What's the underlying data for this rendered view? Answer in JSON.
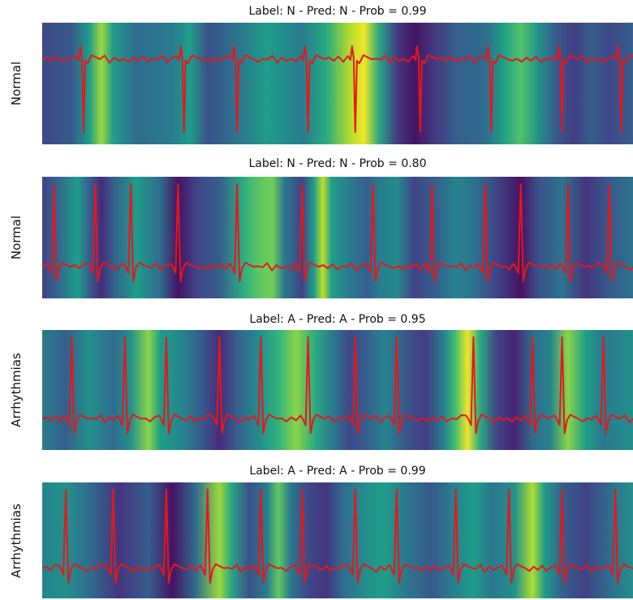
{
  "colors": {
    "trace": "#e8161a",
    "colormap": "viridis"
  },
  "chart_data": [
    {
      "type": "heatmap",
      "title": "Label: N - Pred: N - Prob = 0.99",
      "ylabel": "Normal",
      "beats": [
        0.07,
        0.24,
        0.33,
        0.45,
        0.53,
        0.64,
        0.76,
        0.88,
        0.98
      ],
      "beat_polarity": "down",
      "heat": [
        [
          0.0,
          0.22
        ],
        [
          0.05,
          0.28
        ],
        [
          0.08,
          0.55
        ],
        [
          0.1,
          0.85
        ],
        [
          0.12,
          0.55
        ],
        [
          0.16,
          0.35
        ],
        [
          0.22,
          0.42
        ],
        [
          0.25,
          0.55
        ],
        [
          0.28,
          0.25
        ],
        [
          0.32,
          0.35
        ],
        [
          0.38,
          0.55
        ],
        [
          0.44,
          0.42
        ],
        [
          0.48,
          0.6
        ],
        [
          0.52,
          0.88
        ],
        [
          0.545,
          0.98
        ],
        [
          0.57,
          0.6
        ],
        [
          0.6,
          0.18
        ],
        [
          0.63,
          0.05
        ],
        [
          0.66,
          0.15
        ],
        [
          0.7,
          0.3
        ],
        [
          0.75,
          0.35
        ],
        [
          0.78,
          0.55
        ],
        [
          0.81,
          0.72
        ],
        [
          0.84,
          0.5
        ],
        [
          0.87,
          0.28
        ],
        [
          0.9,
          0.18
        ],
        [
          0.93,
          0.3
        ],
        [
          0.96,
          0.22
        ],
        [
          1.0,
          0.3
        ]
      ]
    },
    {
      "type": "heatmap",
      "title": "Label: N - Pred: N - Prob = 0.80",
      "ylabel": "Normal",
      "beats": [
        0.02,
        0.09,
        0.15,
        0.23,
        0.33,
        0.44,
        0.56,
        0.66,
        0.75,
        0.81,
        0.89,
        0.96
      ],
      "beat_polarity": "up",
      "heat": [
        [
          0.0,
          0.2
        ],
        [
          0.03,
          0.35
        ],
        [
          0.06,
          0.55
        ],
        [
          0.08,
          0.3
        ],
        [
          0.1,
          0.12
        ],
        [
          0.12,
          0.3
        ],
        [
          0.16,
          0.55
        ],
        [
          0.2,
          0.35
        ],
        [
          0.23,
          0.05
        ],
        [
          0.26,
          0.2
        ],
        [
          0.3,
          0.3
        ],
        [
          0.34,
          0.62
        ],
        [
          0.37,
          0.75
        ],
        [
          0.39,
          0.78
        ],
        [
          0.41,
          0.4
        ],
        [
          0.44,
          0.2
        ],
        [
          0.46,
          0.55
        ],
        [
          0.475,
          0.9
        ],
        [
          0.49,
          0.55
        ],
        [
          0.52,
          0.42
        ],
        [
          0.55,
          0.3
        ],
        [
          0.57,
          0.42
        ],
        [
          0.6,
          0.48
        ],
        [
          0.63,
          0.2
        ],
        [
          0.67,
          0.32
        ],
        [
          0.7,
          0.45
        ],
        [
          0.73,
          0.38
        ],
        [
          0.77,
          0.2
        ],
        [
          0.81,
          0.05
        ],
        [
          0.84,
          0.25
        ],
        [
          0.88,
          0.38
        ],
        [
          0.92,
          0.15
        ],
        [
          0.96,
          0.28
        ],
        [
          1.0,
          0.38
        ]
      ]
    },
    {
      "type": "heatmap",
      "title": "Label: A - Pred: A - Prob = 0.95",
      "ylabel": "Arrhythmias",
      "beats": [
        0.05,
        0.14,
        0.21,
        0.3,
        0.37,
        0.45,
        0.53,
        0.6,
        0.73,
        0.83,
        0.88,
        0.95
      ],
      "beat_polarity": "up",
      "heat": [
        [
          0.0,
          0.42
        ],
        [
          0.04,
          0.3
        ],
        [
          0.08,
          0.5
        ],
        [
          0.12,
          0.35
        ],
        [
          0.15,
          0.5
        ],
        [
          0.18,
          0.82
        ],
        [
          0.2,
          0.55
        ],
        [
          0.24,
          0.45
        ],
        [
          0.27,
          0.28
        ],
        [
          0.3,
          0.12
        ],
        [
          0.33,
          0.3
        ],
        [
          0.37,
          0.5
        ],
        [
          0.4,
          0.65
        ],
        [
          0.43,
          0.82
        ],
        [
          0.46,
          0.62
        ],
        [
          0.49,
          0.42
        ],
        [
          0.52,
          0.22
        ],
        [
          0.55,
          0.3
        ],
        [
          0.58,
          0.45
        ],
        [
          0.62,
          0.25
        ],
        [
          0.65,
          0.18
        ],
        [
          0.68,
          0.45
        ],
        [
          0.7,
          0.7
        ],
        [
          0.72,
          0.98
        ],
        [
          0.74,
          0.62
        ],
        [
          0.77,
          0.2
        ],
        [
          0.8,
          0.1
        ],
        [
          0.83,
          0.35
        ],
        [
          0.86,
          0.45
        ],
        [
          0.89,
          0.82
        ],
        [
          0.92,
          0.55
        ],
        [
          0.95,
          0.4
        ],
        [
          1.0,
          0.5
        ]
      ]
    },
    {
      "type": "heatmap",
      "title": "Label: A - Pred: A - Prob = 0.99",
      "ylabel": "Arrhythmias",
      "beats": [
        0.04,
        0.12,
        0.21,
        0.28,
        0.37,
        0.44,
        0.53,
        0.6,
        0.7,
        0.79,
        0.88,
        0.97
      ],
      "beat_polarity": "up",
      "heat": [
        [
          0.0,
          0.45
        ],
        [
          0.04,
          0.5
        ],
        [
          0.08,
          0.35
        ],
        [
          0.13,
          0.15
        ],
        [
          0.18,
          0.3
        ],
        [
          0.22,
          0.05
        ],
        [
          0.26,
          0.35
        ],
        [
          0.3,
          0.85
        ],
        [
          0.32,
          0.6
        ],
        [
          0.35,
          0.25
        ],
        [
          0.38,
          0.42
        ],
        [
          0.4,
          0.75
        ],
        [
          0.42,
          0.4
        ],
        [
          0.45,
          0.22
        ],
        [
          0.48,
          0.15
        ],
        [
          0.51,
          0.35
        ],
        [
          0.55,
          0.5
        ],
        [
          0.58,
          0.55
        ],
        [
          0.62,
          0.38
        ],
        [
          0.66,
          0.28
        ],
        [
          0.7,
          0.45
        ],
        [
          0.73,
          0.55
        ],
        [
          0.76,
          0.4
        ],
        [
          0.8,
          0.5
        ],
        [
          0.83,
          0.88
        ],
        [
          0.85,
          0.55
        ],
        [
          0.88,
          0.3
        ],
        [
          0.92,
          0.2
        ],
        [
          0.96,
          0.35
        ],
        [
          1.0,
          0.5
        ]
      ]
    }
  ]
}
